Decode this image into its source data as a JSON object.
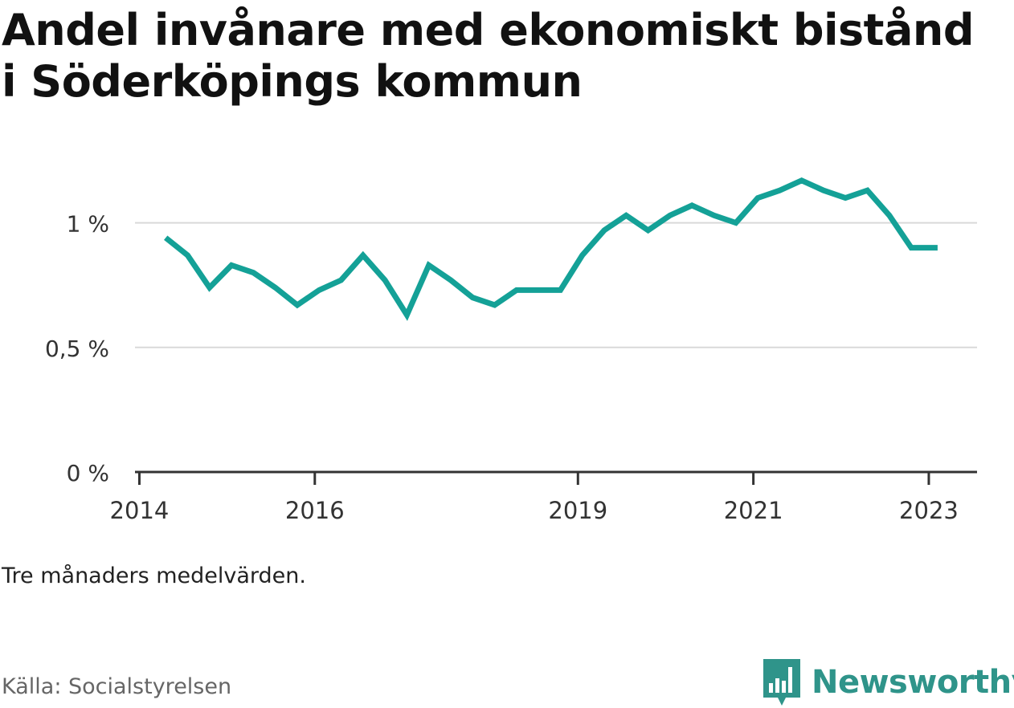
{
  "header": {
    "title": "Andel invånare med ekonomiskt bistånd i Söderköpings kommun"
  },
  "footer": {
    "note": "Tre månaders medelvärden.",
    "source": "Källa: Socialstyrelsen",
    "logo_text": "Newsworthy",
    "logo_icon": "bar-chart-speech-bubble-icon"
  },
  "colors": {
    "line": "#14a197",
    "grid": "#d9d9d9",
    "axis": "#333333",
    "brand": "#2f948a"
  },
  "chart_data": {
    "type": "line",
    "title": "",
    "xlabel": "",
    "ylabel": "",
    "ylim": [
      0,
      1.25
    ],
    "xlim": [
      2013.95,
      2023.55
    ],
    "grid": true,
    "legend": "none",
    "y_ticks": [
      {
        "value": 0,
        "label": "0 %"
      },
      {
        "value": 0.5,
        "label": "0,5 %"
      },
      {
        "value": 1,
        "label": "1 %"
      }
    ],
    "x_ticks": [
      {
        "value": 2014,
        "label": "2014"
      },
      {
        "value": 2016,
        "label": "2016"
      },
      {
        "value": 2019,
        "label": "2019"
      },
      {
        "value": 2021,
        "label": "2021"
      },
      {
        "value": 2023,
        "label": "2023"
      }
    ],
    "series": [
      {
        "name": "",
        "x": [
          2014.3,
          2014.55,
          2014.8,
          2015.05,
          2015.3,
          2015.55,
          2015.8,
          2016.05,
          2016.3,
          2016.55,
          2016.8,
          2017.05,
          2017.3,
          2017.55,
          2017.8,
          2018.05,
          2018.3,
          2018.55,
          2018.8,
          2019.05,
          2019.3,
          2019.55,
          2019.8,
          2020.05,
          2020.3,
          2020.55,
          2020.8,
          2021.05,
          2021.3,
          2021.55,
          2021.8,
          2022.05,
          2022.3,
          2022.55,
          2022.8,
          2023.1
        ],
        "values": [
          0.94,
          0.87,
          0.74,
          0.83,
          0.8,
          0.74,
          0.67,
          0.73,
          0.77,
          0.87,
          0.77,
          0.63,
          0.83,
          0.77,
          0.7,
          0.67,
          0.73,
          0.73,
          0.73,
          0.87,
          0.97,
          1.03,
          0.97,
          1.03,
          1.07,
          1.03,
          1.0,
          1.1,
          1.13,
          1.17,
          1.13,
          1.1,
          1.13,
          1.03,
          0.9,
          0.9
        ]
      }
    ]
  }
}
